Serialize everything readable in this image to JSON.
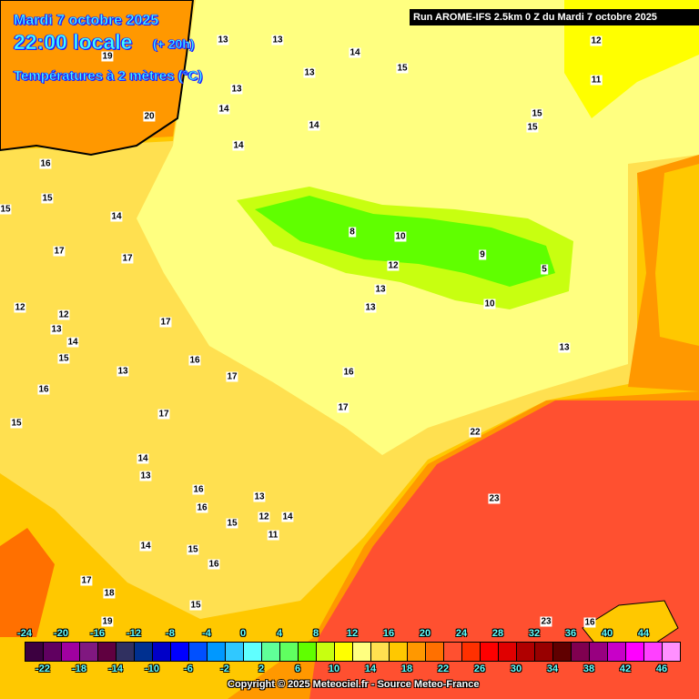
{
  "header": {
    "date": "Mardi 7 octobre 2025",
    "time": "22:00 locale",
    "lead": "(+ 20h)",
    "parameter": "Températures à 2 mètres (°C)",
    "run": "Run AROME-IFS 2.5km 0 Z du Mardi 7 octobre 2025"
  },
  "legend": {
    "top_ticks": [
      "-24",
      "-20",
      "-16",
      "-12",
      "-8",
      "-4",
      "0",
      "4",
      "8",
      "12",
      "16",
      "20",
      "24",
      "28",
      "32",
      "36",
      "40",
      "44"
    ],
    "bottom_ticks": [
      "-22",
      "-18",
      "-14",
      "-10",
      "-6",
      "-2",
      "2",
      "6",
      "10",
      "14",
      "18",
      "22",
      "26",
      "30",
      "34",
      "38",
      "42",
      "46"
    ],
    "colors": [
      "#3c0040",
      "#600060",
      "#a000a0",
      "#801880",
      "#600040",
      "#303060",
      "#003090",
      "#0000c8",
      "#0000ff",
      "#0050ff",
      "#0098ff",
      "#30c8ff",
      "#60ffff",
      "#60ff98",
      "#60ff60",
      "#60ff00",
      "#c8ff10",
      "#ffff00",
      "#ffff80",
      "#ffe050",
      "#ffc800",
      "#ff9800",
      "#ff7000",
      "#ff5030",
      "#ff3000",
      "#ff0000",
      "#e00000",
      "#b00000",
      "#980000",
      "#600000",
      "#800050",
      "#980080",
      "#c800c8",
      "#ff00ff",
      "#ff40ff",
      "#ff90ff"
    ]
  },
  "map_labels": [
    "19",
    "20",
    "13",
    "14",
    "15",
    "13",
    "13",
    "14",
    "14",
    "14",
    "12",
    "11",
    "15",
    "16",
    "15",
    "15",
    "14",
    "17",
    "17",
    "12",
    "12",
    "13",
    "14",
    "15",
    "17",
    "16",
    "13",
    "16",
    "17",
    "15",
    "17",
    "16",
    "8",
    "10",
    "12",
    "13",
    "13",
    "9",
    "5",
    "10",
    "13",
    "13",
    "15",
    "17",
    "16",
    "22",
    "23",
    "14",
    "13",
    "16",
    "13",
    "12",
    "14",
    "11",
    "15",
    "14",
    "15",
    "16",
    "17",
    "18",
    "15",
    "19",
    "23",
    "16"
  ],
  "copyright": "Copyright © 2025 Meteociel.fr - Source Meteo-France"
}
